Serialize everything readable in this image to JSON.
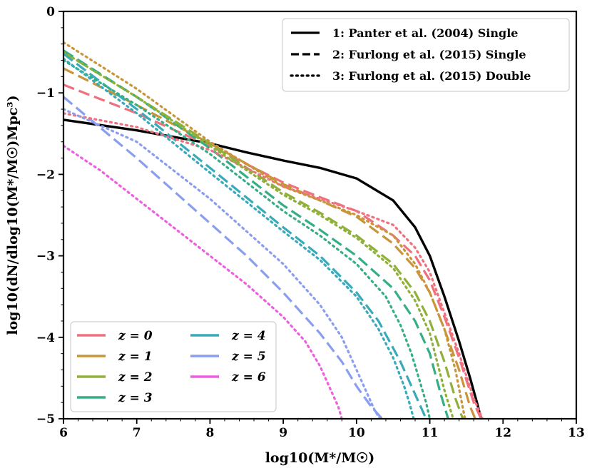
{
  "chart_data": {
    "type": "line",
    "xlabel": "log10(M*/M☉)",
    "ylabel": "log10(dN/dlog10(M*/M☉)Mpc³)",
    "xlim": [
      6,
      13
    ],
    "ylim": [
      -5,
      0
    ],
    "x_ticks": [
      "6",
      "7",
      "8",
      "9",
      "10",
      "11",
      "12",
      "13"
    ],
    "y_ticks": [
      "0",
      "−1",
      "−2",
      "−3",
      "−4",
      "−5"
    ],
    "style_legend": [
      {
        "label": "1: Panter et al. (2004) Single",
        "style": "solid"
      },
      {
        "label": "2: Furlong et al. (2015) Single",
        "style": "dashed"
      },
      {
        "label": "3: Furlong et al. (2015) Double",
        "style": "dotted"
      }
    ],
    "redshift_legend": [
      {
        "label": "z = 0",
        "color": "#f0707e"
      },
      {
        "label": "z = 1",
        "color": "#c9953a"
      },
      {
        "label": "z = 2",
        "color": "#8fb03a"
      },
      {
        "label": "z = 3",
        "color": "#35ae86"
      },
      {
        "label": "z = 4",
        "color": "#38aab9"
      },
      {
        "label": "z = 5",
        "color": "#8a9ef0"
      },
      {
        "label": "z = 6",
        "color": "#ee5fe0"
      }
    ],
    "series": [
      {
        "name": "Panter et al. (2004) Single",
        "style": "solid",
        "color": "#000000",
        "x": [
          6.0,
          7.0,
          8.0,
          8.5,
          9.0,
          9.5,
          10.0,
          10.5,
          10.8,
          11.0,
          11.2,
          11.4,
          11.55,
          11.65,
          11.7
        ],
        "y": [
          -1.33,
          -1.46,
          -1.62,
          -1.73,
          -1.83,
          -1.92,
          -2.05,
          -2.32,
          -2.65,
          -3.0,
          -3.5,
          -4.05,
          -4.5,
          -4.82,
          -5.0
        ]
      },
      {
        "name": "z = 0 single",
        "style": "dashed",
        "color": "#f0707e",
        "x": [
          6.0,
          7.0,
          8.0,
          9.0,
          9.5,
          10.0,
          10.5,
          10.8,
          11.0,
          11.2,
          11.4,
          11.6,
          11.7
        ],
        "y": [
          -0.9,
          -1.25,
          -1.65,
          -2.1,
          -2.28,
          -2.45,
          -2.75,
          -3.0,
          -3.3,
          -3.75,
          -4.25,
          -4.8,
          -5.0
        ]
      },
      {
        "name": "z = 1 single",
        "style": "dashed",
        "color": "#c9953a",
        "x": [
          6.0,
          7.0,
          8.0,
          9.0,
          9.5,
          10.0,
          10.5,
          10.8,
          11.0,
          11.2,
          11.4,
          11.55,
          11.62
        ],
        "y": [
          -0.7,
          -1.15,
          -1.62,
          -2.12,
          -2.32,
          -2.52,
          -2.85,
          -3.15,
          -3.45,
          -3.9,
          -4.4,
          -4.85,
          -5.0
        ]
      },
      {
        "name": "z = 2 single",
        "style": "dashed",
        "color": "#8fb03a",
        "x": [
          6.0,
          7.0,
          8.0,
          9.0,
          9.5,
          10.0,
          10.5,
          10.8,
          11.0,
          11.2,
          11.35,
          11.45
        ],
        "y": [
          -0.5,
          -1.05,
          -1.62,
          -2.22,
          -2.47,
          -2.75,
          -3.1,
          -3.45,
          -3.8,
          -4.3,
          -4.75,
          -5.0
        ]
      },
      {
        "name": "z = 3 single",
        "style": "dashed",
        "color": "#35ae86",
        "x": [
          6.0,
          7.0,
          8.0,
          9.0,
          9.5,
          10.0,
          10.5,
          10.8,
          11.0,
          11.15,
          11.25
        ],
        "y": [
          -0.48,
          -1.05,
          -1.68,
          -2.38,
          -2.68,
          -3.0,
          -3.4,
          -3.8,
          -4.2,
          -4.7,
          -5.0
        ]
      },
      {
        "name": "z = 4 single",
        "style": "dashed",
        "color": "#38aab9",
        "x": [
          6.0,
          7.0,
          8.0,
          9.0,
          9.5,
          10.0,
          10.3,
          10.6,
          10.8,
          10.9,
          10.95
        ],
        "y": [
          -0.52,
          -1.2,
          -1.92,
          -2.65,
          -3.0,
          -3.45,
          -3.8,
          -4.3,
          -4.7,
          -4.9,
          -5.0
        ]
      },
      {
        "name": "z = 5 single",
        "style": "dashed",
        "color": "#8a9ef0",
        "x": [
          6.0,
          7.0,
          8.0,
          8.5,
          9.0,
          9.5,
          9.8,
          10.0,
          10.2,
          10.35
        ],
        "y": [
          -1.05,
          -1.8,
          -2.6,
          -3.0,
          -3.45,
          -3.95,
          -4.3,
          -4.6,
          -4.85,
          -5.0
        ]
      },
      {
        "name": "z = 0 double",
        "style": "dotted",
        "color": "#f0707e",
        "x": [
          6.0,
          7.0,
          8.0,
          9.0,
          9.5,
          10.0,
          10.5,
          10.8,
          11.0,
          11.2,
          11.4,
          11.6,
          11.72
        ],
        "y": [
          -1.25,
          -1.42,
          -1.7,
          -2.15,
          -2.3,
          -2.45,
          -2.62,
          -2.9,
          -3.2,
          -3.7,
          -4.2,
          -4.75,
          -5.0
        ]
      },
      {
        "name": "z = 1 double",
        "style": "dotted",
        "color": "#c9953a",
        "x": [
          6.0,
          7.0,
          8.0,
          9.0,
          9.5,
          10.0,
          10.5,
          10.8,
          11.0,
          11.2,
          11.35,
          11.48
        ],
        "y": [
          -0.38,
          -0.95,
          -1.6,
          -2.15,
          -2.32,
          -2.5,
          -2.75,
          -3.1,
          -3.45,
          -3.9,
          -4.4,
          -5.0
        ]
      },
      {
        "name": "z = 2 double",
        "style": "dotted",
        "color": "#8fb03a",
        "x": [
          6.0,
          7.0,
          8.0,
          9.0,
          9.5,
          10.0,
          10.5,
          10.8,
          11.0,
          11.1,
          11.2,
          11.32
        ],
        "y": [
          -0.5,
          -1.05,
          -1.65,
          -2.25,
          -2.5,
          -2.78,
          -3.15,
          -3.55,
          -3.95,
          -4.3,
          -4.65,
          -5.0
        ]
      },
      {
        "name": "z = 3 double",
        "style": "dotted",
        "color": "#35ae86",
        "x": [
          6.0,
          7.0,
          8.0,
          9.0,
          9.5,
          10.0,
          10.4,
          10.6,
          10.75,
          10.85,
          10.95,
          11.0
        ],
        "y": [
          -0.6,
          -1.15,
          -1.75,
          -2.45,
          -2.75,
          -3.1,
          -3.5,
          -3.85,
          -4.2,
          -4.5,
          -4.8,
          -5.0
        ]
      },
      {
        "name": "z = 4 double",
        "style": "dotted",
        "color": "#38aab9",
        "x": [
          6.0,
          7.0,
          8.0,
          9.0,
          9.5,
          10.0,
          10.3,
          10.5,
          10.65,
          10.72,
          10.78
        ],
        "y": [
          -0.58,
          -1.25,
          -1.98,
          -2.7,
          -3.05,
          -3.5,
          -3.9,
          -4.25,
          -4.6,
          -4.8,
          -5.0
        ]
      },
      {
        "name": "z = 5 double",
        "style": "dotted",
        "color": "#8a9ef0",
        "x": [
          6.0,
          7.0,
          8.0,
          9.0,
          9.5,
          9.8,
          10.0,
          10.15,
          10.25,
          10.32
        ],
        "y": [
          -1.2,
          -1.6,
          -2.3,
          -3.1,
          -3.6,
          -4.0,
          -4.4,
          -4.7,
          -4.9,
          -5.0
        ]
      },
      {
        "name": "z = 6 double",
        "style": "dotted",
        "color": "#ee5fe0",
        "x": [
          6.0,
          6.5,
          7.0,
          7.5,
          8.0,
          8.5,
          9.0,
          9.3,
          9.5,
          9.65,
          9.75,
          9.8
        ],
        "y": [
          -1.65,
          -1.95,
          -2.3,
          -2.65,
          -3.0,
          -3.35,
          -3.75,
          -4.05,
          -4.35,
          -4.65,
          -4.85,
          -5.0
        ]
      }
    ]
  }
}
